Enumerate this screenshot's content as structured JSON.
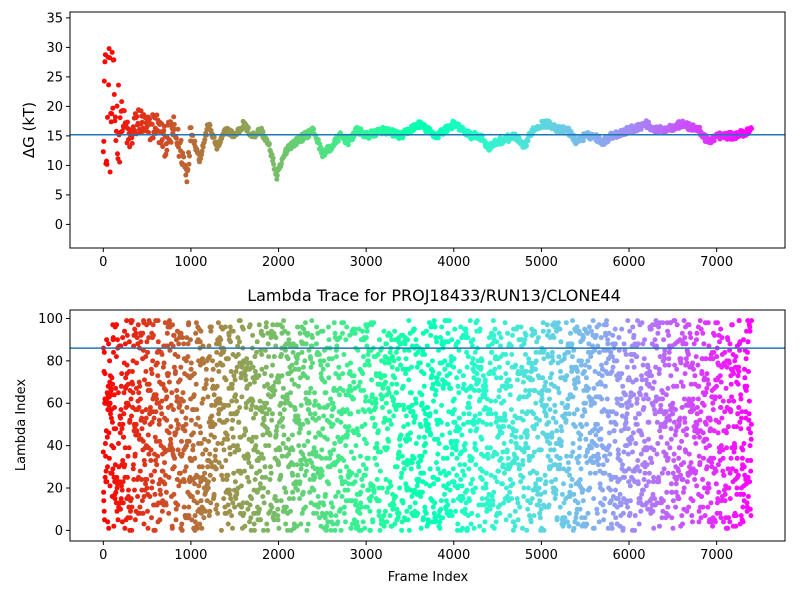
{
  "chart_data": [
    {
      "type": "scatter",
      "title": "",
      "xlabel": "",
      "ylabel": "ΔG (kT)",
      "xlim": [
        -380,
        7780
      ],
      "ylim": [
        -4,
        36
      ],
      "xticks": [
        0,
        1000,
        2000,
        3000,
        4000,
        5000,
        6000,
        7000
      ],
      "yticks": [
        0,
        5,
        10,
        15,
        20,
        25,
        30,
        35
      ],
      "hline": 15.2,
      "colormap": "rainbow",
      "color_by": "frame index (red at 0 to purple at 7400)",
      "n_frames": 7400,
      "series": [
        {
          "x": [
            0,
            20,
            40,
            60,
            80,
            100,
            150,
            200,
            300,
            400,
            500,
            600,
            700,
            800,
            900,
            950,
            1000,
            1100,
            1200,
            1300,
            1400,
            1500,
            1600,
            1700,
            1800,
            1900,
            1980,
            2000,
            2100,
            2200,
            2300,
            2400,
            2500,
            2600,
            2700,
            2800,
            2900,
            3000,
            3200,
            3400,
            3600,
            3800,
            4000,
            4100,
            4200,
            4300,
            4400,
            4500,
            4700,
            4800,
            4900,
            5000,
            5100,
            5200,
            5300,
            5400,
            5500,
            5600,
            5700,
            5800,
            6000,
            6200,
            6300,
            6400,
            6600,
            6800,
            6900,
            7000,
            7200,
            7400
          ],
          "y": [
            20,
            26,
            7,
            31,
            14,
            22,
            17,
            19,
            14,
            18,
            16,
            17,
            14,
            16,
            12,
            8.5,
            16,
            11,
            17,
            13,
            16,
            15,
            17,
            15,
            16,
            13,
            8,
            9,
            13,
            14,
            15,
            16,
            12,
            13,
            15,
            14,
            16,
            15,
            16,
            15,
            17,
            15,
            17,
            16,
            15,
            15,
            13,
            14,
            15,
            13,
            16,
            17,
            17,
            16,
            16,
            14,
            15,
            15,
            14,
            15,
            16,
            17,
            16,
            16,
            17,
            16,
            14,
            15,
            15,
            16
          ]
        }
      ]
    },
    {
      "type": "scatter",
      "title": "Lambda Trace for PROJ18433/RUN13/CLONE44",
      "xlabel": "Frame Index",
      "ylabel": "Lambda Index",
      "xlim": [
        -380,
        7780
      ],
      "ylim": [
        -5,
        104
      ],
      "xticks": [
        0,
        1000,
        2000,
        3000,
        4000,
        5000,
        6000,
        7000
      ],
      "yticks": [
        0,
        20,
        40,
        60,
        80,
        100
      ],
      "hline": 86,
      "colormap": "rainbow",
      "color_by": "frame index (red at 0 to purple at 7400)",
      "n_frames": 7400,
      "y_range": [
        0,
        99
      ],
      "series": [
        {
          "x": [
            0,
            100,
            200,
            300,
            400,
            500,
            600,
            700,
            800,
            900,
            1000,
            1200,
            1400,
            1600,
            1800,
            2000,
            2200,
            2400,
            2600,
            2800,
            3000,
            3200,
            3400,
            3600,
            3800,
            4000,
            4200,
            4400,
            4600,
            4800,
            5000,
            5200,
            5400,
            5600,
            5800,
            6000,
            6200,
            6400,
            6600,
            6800,
            7000,
            7200,
            7400
          ],
          "y": [
            20,
            60,
            85,
            30,
            70,
            45,
            90,
            15,
            55,
            5,
            75,
            35,
            95,
            25,
            65,
            10,
            80,
            50,
            40,
            88,
            20,
            60,
            30,
            70,
            45,
            15,
            85,
            55,
            25,
            65,
            35,
            90,
            10,
            50,
            75,
            20,
            60,
            40,
            80,
            30,
            70,
            50,
            20
          ]
        }
      ]
    }
  ]
}
